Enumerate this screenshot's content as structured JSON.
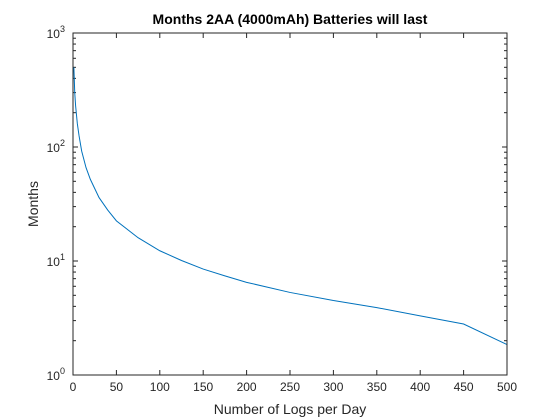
{
  "chart_data": {
    "type": "line",
    "title": "Months 2AA (4000mAh) Batteries will last",
    "xlabel": "Number of Logs per Day",
    "ylabel": "Months",
    "xlim": [
      0,
      500
    ],
    "ylim": [
      1,
      1000
    ],
    "yscale": "log",
    "grid": false,
    "legend": "none",
    "x_ticks": [
      "0",
      "50",
      "100",
      "150",
      "200",
      "250",
      "300",
      "350",
      "400",
      "450",
      "500"
    ],
    "x_tick_values": [
      0,
      50,
      100,
      150,
      200,
      250,
      300,
      350,
      400,
      450,
      500
    ],
    "y_ticks": [
      {
        "base": "10",
        "exp": "0",
        "value": 1
      },
      {
        "base": "10",
        "exp": "1",
        "value": 10
      },
      {
        "base": "10",
        "exp": "2",
        "value": 100
      },
      {
        "base": "10",
        "exp": "3",
        "value": 1000
      }
    ],
    "series": [
      {
        "color": "#0072bd",
        "x": [
          1,
          2,
          3,
          5,
          7,
          10,
          15,
          20,
          30,
          40,
          50,
          75,
          100,
          125,
          150,
          175,
          200,
          250,
          300,
          350,
          400,
          450,
          500
        ],
        "y": [
          500,
          300,
          230,
          160,
          125,
          92,
          66,
          52,
          36,
          28,
          22.5,
          16,
          12.3,
          10.1,
          8.5,
          7.4,
          6.5,
          5.3,
          4.5,
          3.9,
          3.3,
          2.8,
          1.85
        ]
      }
    ]
  }
}
